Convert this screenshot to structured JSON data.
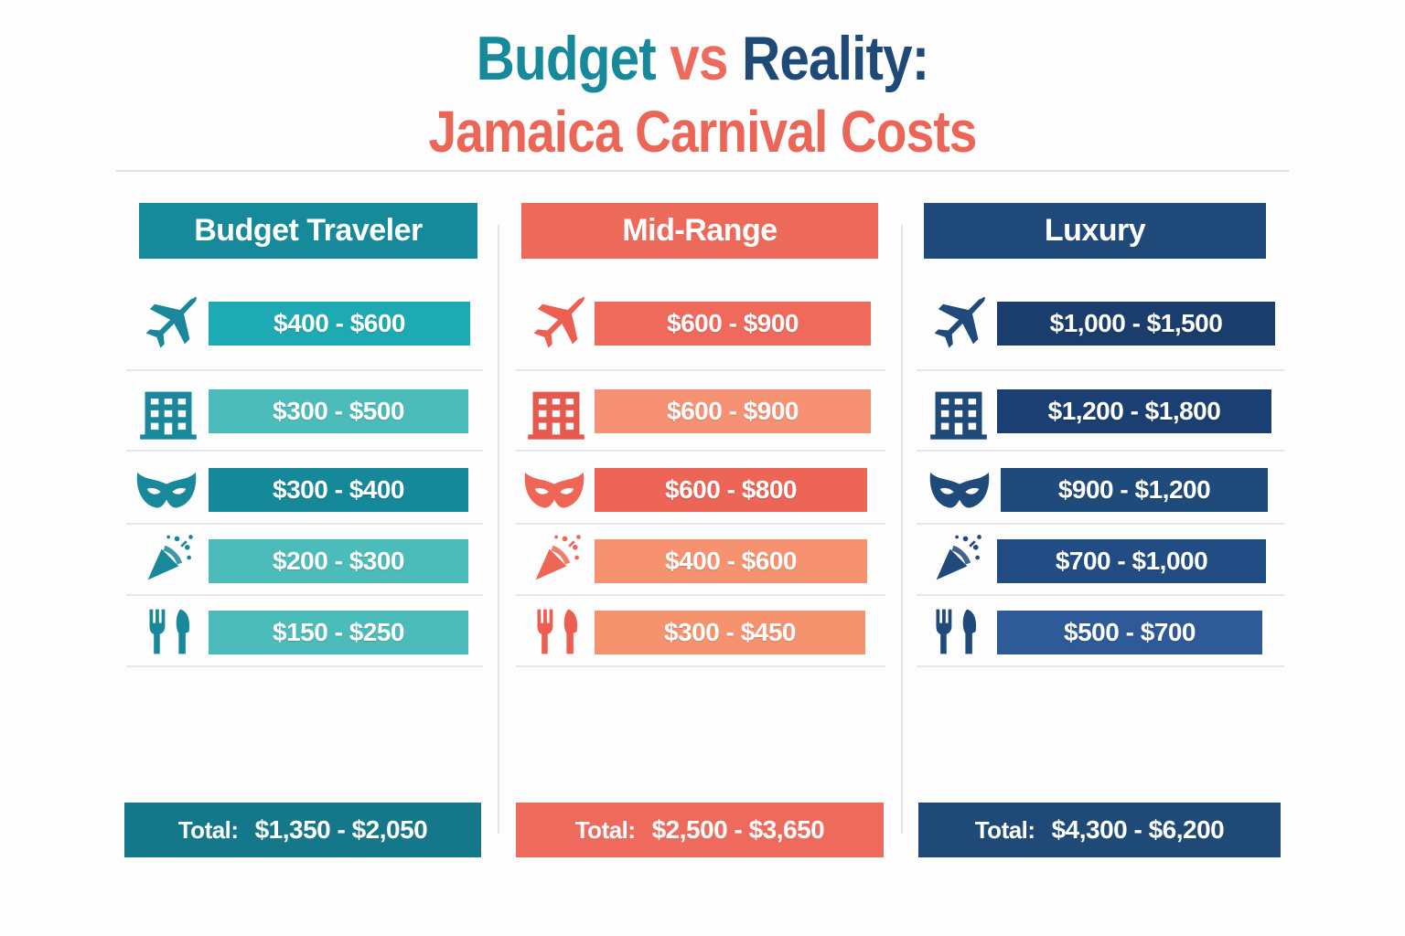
{
  "title": {
    "w1": "Budget",
    "w2": "vs",
    "w3": "Reality:",
    "line2": "Jamaica Carnival Costs"
  },
  "colors": {
    "teal": "#1a8a9a",
    "coral": "#ef6a5c",
    "navy": "#1f4a7a"
  },
  "icons": [
    "airplane-icon",
    "hotel-icon",
    "mask-icon",
    "party-popper-icon",
    "fork-knife-icon"
  ],
  "tiers": [
    {
      "name": "Budget Traveler",
      "costs": [
        "$400 - $600",
        "$300 - $500",
        "$300 - $400",
        "$200 - $300",
        "$150 - $250"
      ],
      "total_label": "Total:",
      "total_value": "$1,350 - $2,050"
    },
    {
      "name": "Mid-Range",
      "costs": [
        "$600 - $900",
        "$600 - $900",
        "$600 - $800",
        "$400 - $600",
        "$300 - $450"
      ],
      "total_label": "Total:",
      "total_value": "$2,500 - $3,650"
    },
    {
      "name": "Luxury",
      "costs": [
        "$1,000 - $1,500",
        "$1,200 - $1,800",
        "$900 - $1,200",
        "$700 - $1,000",
        "$500 - $700"
      ],
      "total_label": "Total:",
      "total_value": "$4,300 - $6,200"
    }
  ]
}
